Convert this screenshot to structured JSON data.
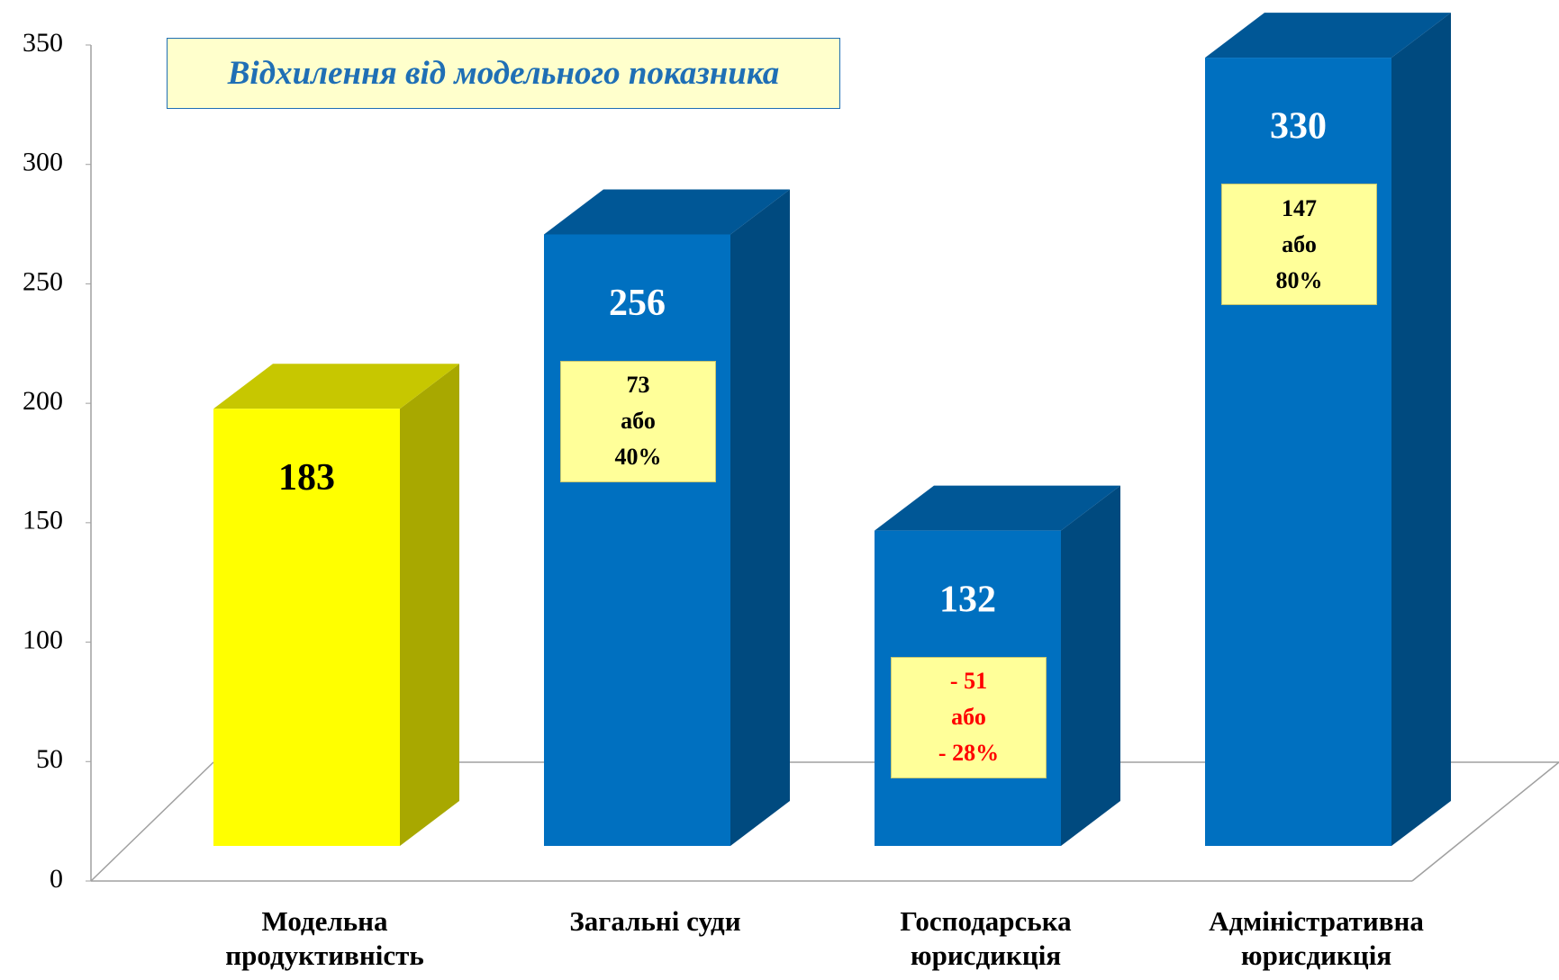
{
  "chart_data": {
    "type": "bar3d",
    "title": "Відхилення від модельного показника",
    "categories": [
      "Модельна\nпродуктивність",
      "Загальні суди",
      "Господарська\nюрисдикція",
      "Адміністративна\nюрисдикція"
    ],
    "values": [
      183,
      256,
      132,
      330
    ],
    "colors": [
      "#ffff00",
      "#0070c0",
      "#0070c0",
      "#0070c0"
    ],
    "value_label_colors": [
      "#000000",
      "#ffffff",
      "#ffffff",
      "#ffffff"
    ],
    "deviations": [
      null,
      {
        "text": "73\nабо\n40%",
        "color": "#000000"
      },
      {
        "text": "- 51\nабо\n- 28%",
        "color": "#ff0000"
      },
      {
        "text": "147\nабо\n80%",
        "color": "#000000"
      }
    ],
    "ylim": [
      0,
      350
    ],
    "yticks": [
      0,
      50,
      100,
      150,
      200,
      250,
      300,
      350
    ],
    "grid": false
  }
}
